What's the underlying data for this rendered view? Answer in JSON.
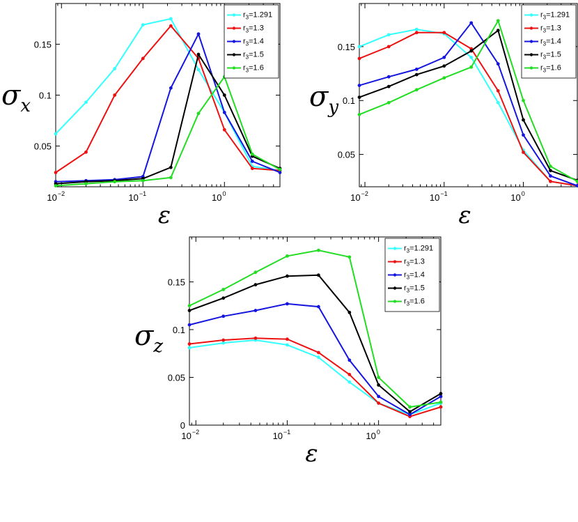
{
  "chart_data": [
    {
      "type": "line",
      "id": "sigma-x",
      "ylabel_main": "σ",
      "ylabel_sub": "x",
      "xlabel": "ε",
      "xscale": "log",
      "xlim": [
        0.0085,
        4.8
      ],
      "ylim": [
        0.01,
        0.19
      ],
      "yticks": [
        0.05,
        0.1,
        0.15
      ],
      "ytick_labels": [
        "0.05",
        "0.1",
        "0.15"
      ],
      "xticks": [
        0.01,
        0.1,
        1
      ],
      "xtick_base": "10",
      "xtick_exps": [
        "−2",
        "−1",
        "0"
      ],
      "legend": "top-right",
      "x": [
        0.0085,
        0.02,
        0.045,
        0.1,
        0.22,
        0.48,
        1.0,
        2.2,
        4.8
      ],
      "series": [
        {
          "name_prefix": "r",
          "name_sub": "3",
          "name_suffix": "=1.291",
          "color": "#33ffff",
          "values": [
            0.062,
            0.093,
            0.126,
            0.169,
            0.175,
            0.125,
            0.083,
            0.03,
            0.026
          ]
        },
        {
          "name_prefix": "r",
          "name_sub": "3",
          "name_suffix": "=1.3",
          "color": "#ee1111",
          "values": [
            0.024,
            0.044,
            0.1,
            0.136,
            0.168,
            0.136,
            0.066,
            0.028,
            0.026
          ]
        },
        {
          "name_prefix": "r",
          "name_sub": "3",
          "name_suffix": "=1.4",
          "color": "#1515e0",
          "values": [
            0.015,
            0.016,
            0.017,
            0.02,
            0.107,
            0.16,
            0.083,
            0.035,
            0.024
          ]
        },
        {
          "name_prefix": "r",
          "name_sub": "3",
          "name_suffix": "=1.5",
          "color": "#000000",
          "values": [
            0.013,
            0.015,
            0.016,
            0.018,
            0.029,
            0.14,
            0.1,
            0.04,
            0.028
          ]
        },
        {
          "name_prefix": "r",
          "name_sub": "3",
          "name_suffix": "=1.6",
          "color": "#22dd22",
          "values": [
            0.011,
            0.013,
            0.015,
            0.016,
            0.019,
            0.082,
            0.118,
            0.042,
            0.027
          ]
        }
      ]
    },
    {
      "type": "line",
      "id": "sigma-y",
      "ylabel_main": "σ",
      "ylabel_sub": "y",
      "xlabel": "ε",
      "xscale": "log",
      "xlim": [
        0.0085,
        4.8
      ],
      "ylim": [
        0.02,
        0.19
      ],
      "yticks": [
        0.05,
        0.1,
        0.15
      ],
      "ytick_labels": [
        "0.05",
        "0.1",
        "0.15"
      ],
      "xticks": [
        0.01,
        0.1,
        1
      ],
      "xtick_base": "10",
      "xtick_exps": [
        "−2",
        "−1",
        "0"
      ],
      "legend": "top-right",
      "x": [
        0.0085,
        0.02,
        0.045,
        0.1,
        0.22,
        0.48,
        1.0,
        2.2,
        4.8
      ],
      "series": [
        {
          "name_prefix": "r",
          "name_sub": "3",
          "name_suffix": "=1.291",
          "color": "#33ffff",
          "values": [
            0.15,
            0.161,
            0.166,
            0.162,
            0.14,
            0.098,
            0.054,
            0.025,
            0.021
          ]
        },
        {
          "name_prefix": "r",
          "name_sub": "3",
          "name_suffix": "=1.3",
          "color": "#ee1111",
          "values": [
            0.139,
            0.15,
            0.163,
            0.163,
            0.148,
            0.109,
            0.052,
            0.025,
            0.021
          ]
        },
        {
          "name_prefix": "r",
          "name_sub": "3",
          "name_suffix": "=1.4",
          "color": "#1515e0",
          "values": [
            0.114,
            0.122,
            0.129,
            0.14,
            0.172,
            0.134,
            0.068,
            0.03,
            0.021
          ]
        },
        {
          "name_prefix": "r",
          "name_sub": "3",
          "name_suffix": "=1.5",
          "color": "#000000",
          "values": [
            0.103,
            0.113,
            0.124,
            0.132,
            0.146,
            0.165,
            0.082,
            0.035,
            0.026
          ]
        },
        {
          "name_prefix": "r",
          "name_sub": "3",
          "name_suffix": "=1.6",
          "color": "#22dd22",
          "values": [
            0.087,
            0.098,
            0.11,
            0.121,
            0.131,
            0.174,
            0.1,
            0.039,
            0.025
          ]
        }
      ]
    },
    {
      "type": "line",
      "id": "sigma-z",
      "ylabel_main": "σ",
      "ylabel_sub": "z",
      "xlabel": "ε",
      "xscale": "log",
      "xlim": [
        0.0085,
        4.8
      ],
      "ylim": [
        0,
        0.197
      ],
      "yticks": [
        0,
        0.05,
        0.1,
        0.15
      ],
      "ytick_labels": [
        "0",
        "0.05",
        "0.1",
        "0.15"
      ],
      "xticks": [
        0.01,
        0.1,
        1
      ],
      "xtick_base": "10",
      "xtick_exps": [
        "−2",
        "−1",
        "0"
      ],
      "legend": "top-right",
      "x": [
        0.0085,
        0.02,
        0.045,
        0.1,
        0.22,
        0.48,
        1.0,
        2.2,
        4.8
      ],
      "series": [
        {
          "name_prefix": "r",
          "name_sub": "3",
          "name_suffix": "=1.291",
          "color": "#33ffff",
          "values": [
            0.081,
            0.086,
            0.089,
            0.084,
            0.071,
            0.045,
            0.023,
            0.011,
            0.023
          ]
        },
        {
          "name_prefix": "r",
          "name_sub": "3",
          "name_suffix": "=1.3",
          "color": "#ee1111",
          "values": [
            0.085,
            0.089,
            0.091,
            0.09,
            0.076,
            0.053,
            0.023,
            0.009,
            0.019
          ]
        },
        {
          "name_prefix": "r",
          "name_sub": "3",
          "name_suffix": "=1.4",
          "color": "#1515e0",
          "values": [
            0.105,
            0.114,
            0.12,
            0.127,
            0.124,
            0.068,
            0.03,
            0.011,
            0.03
          ]
        },
        {
          "name_prefix": "r",
          "name_sub": "3",
          "name_suffix": "=1.5",
          "color": "#000000",
          "values": [
            0.12,
            0.133,
            0.147,
            0.156,
            0.157,
            0.118,
            0.042,
            0.014,
            0.033
          ]
        },
        {
          "name_prefix": "r",
          "name_sub": "3",
          "name_suffix": "=1.6",
          "color": "#22dd22",
          "values": [
            0.125,
            0.142,
            0.16,
            0.177,
            0.183,
            0.176,
            0.05,
            0.019,
            0.024
          ]
        }
      ]
    }
  ]
}
